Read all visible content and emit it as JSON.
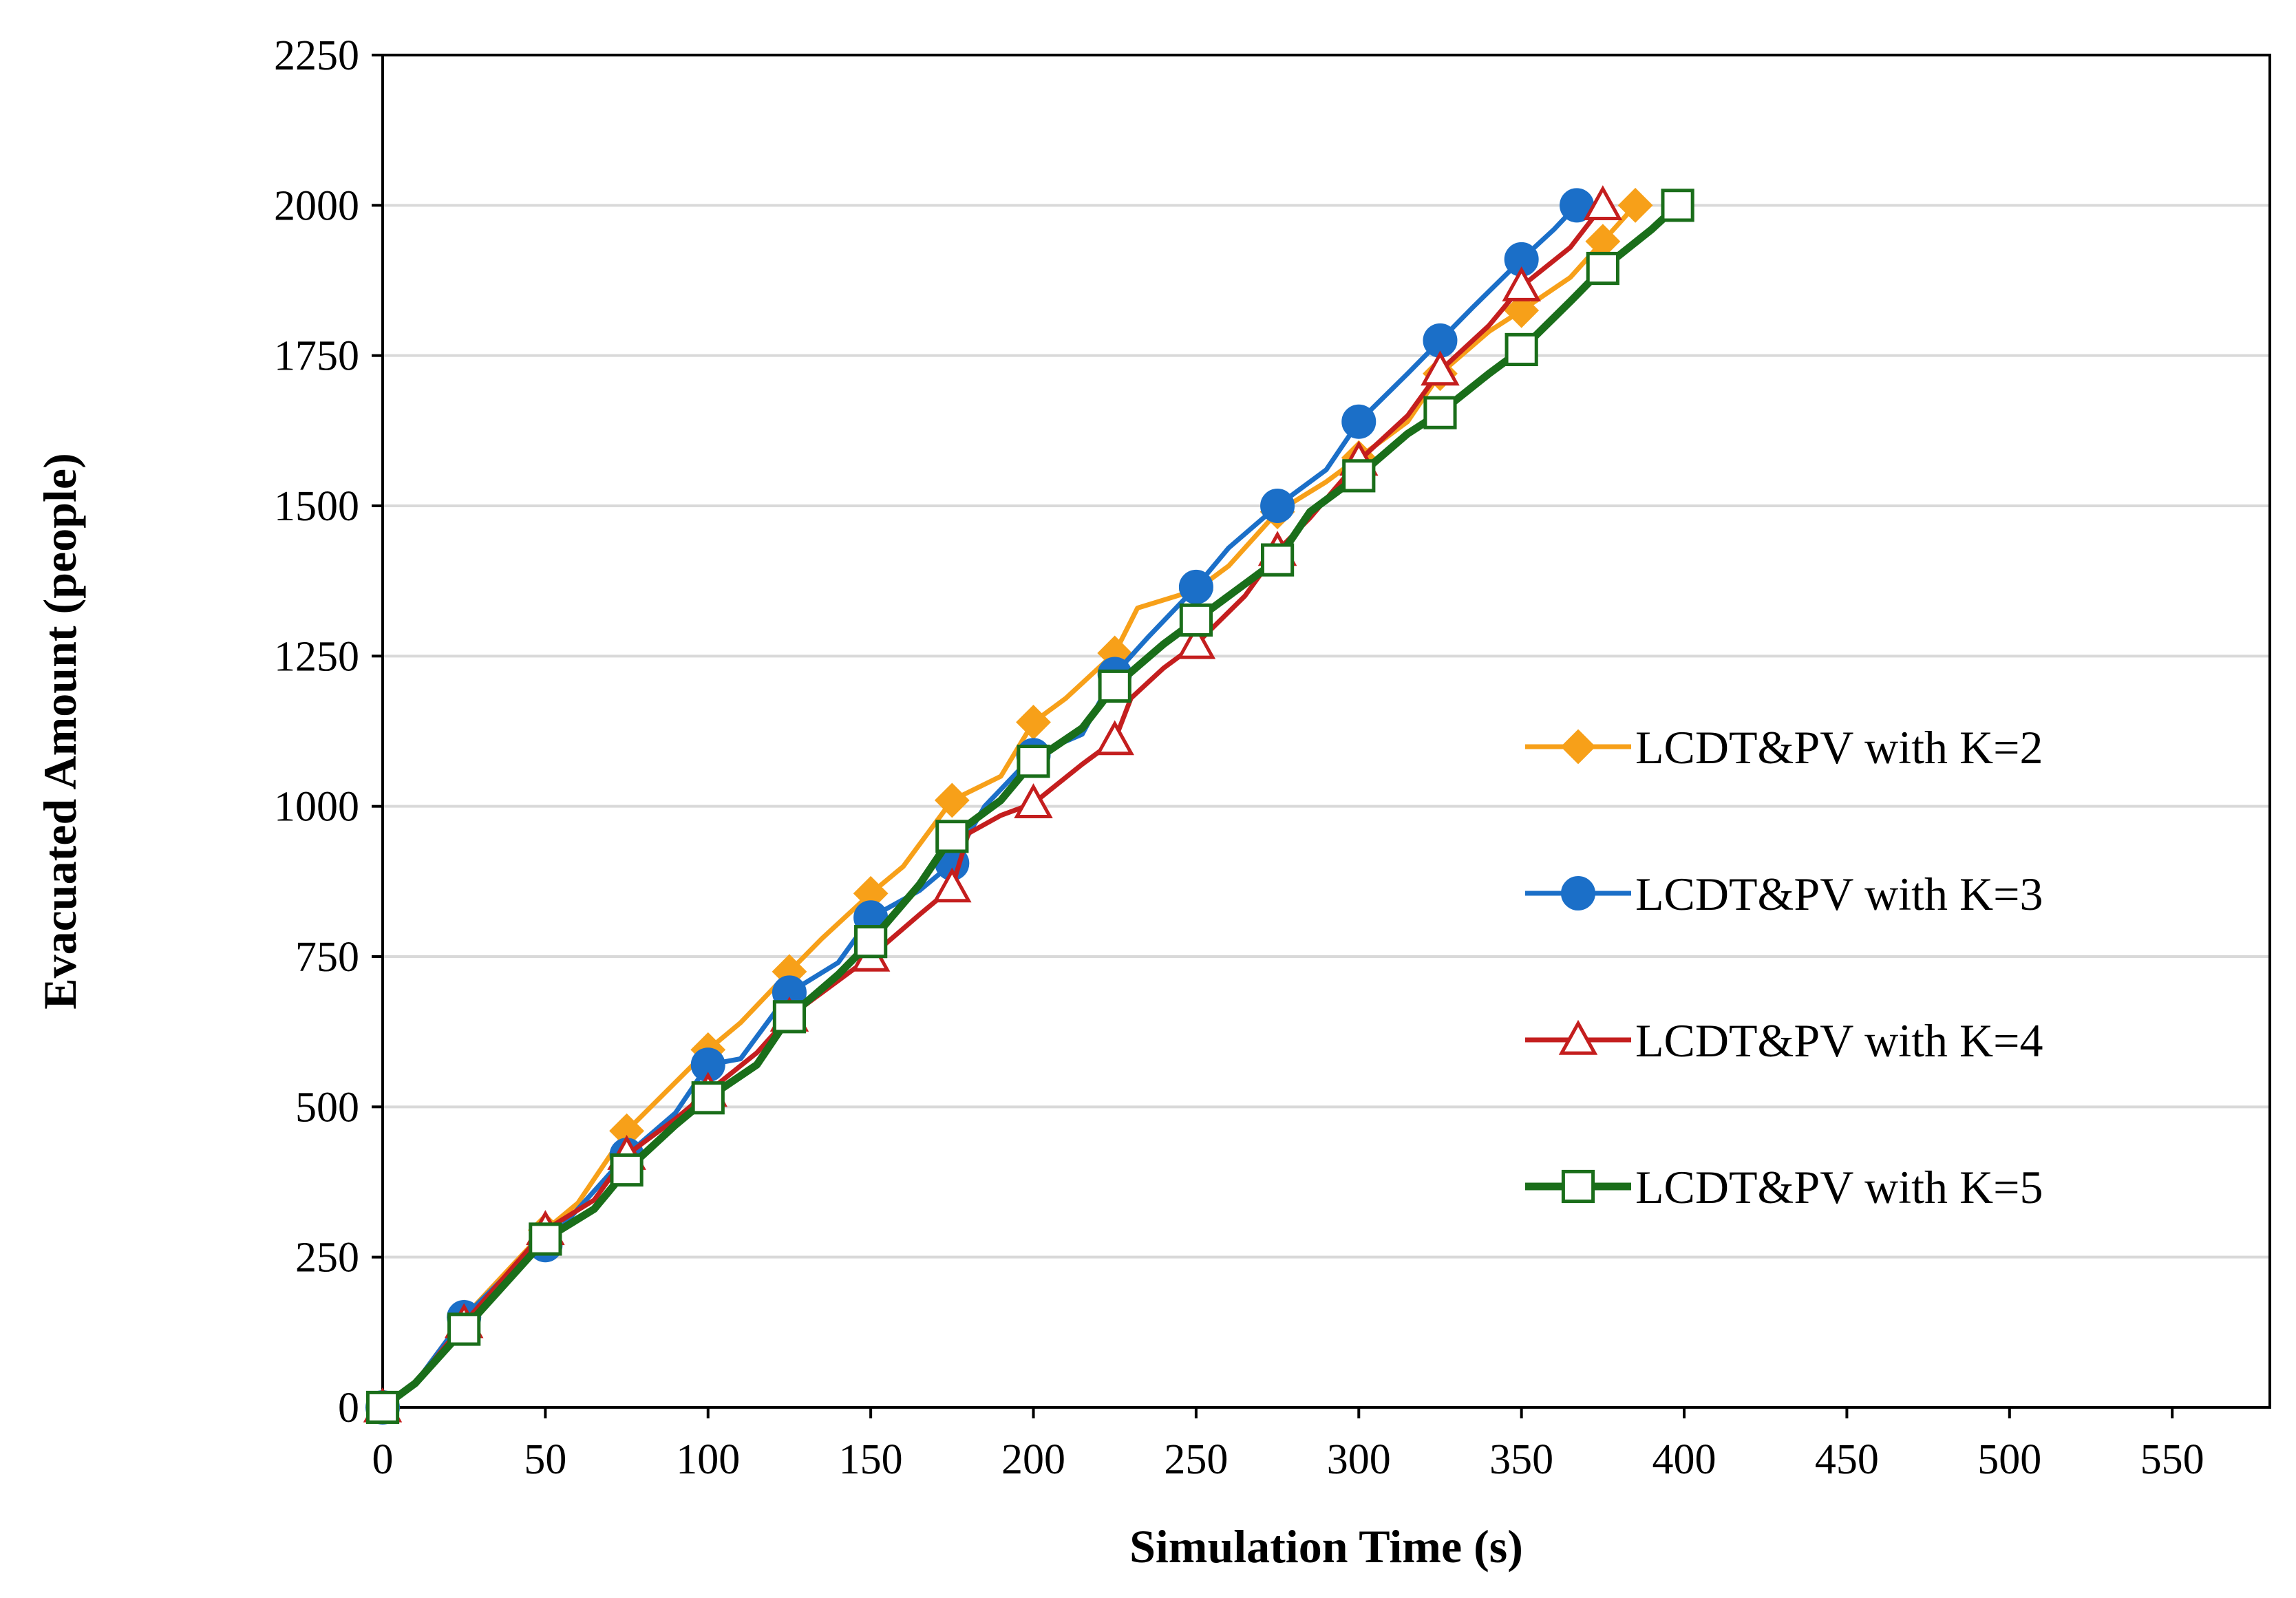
{
  "chart_data": {
    "type": "line",
    "title": "",
    "xlabel": "Simulation Time (s)",
    "ylabel": "Evacuated Amount (people)",
    "xlim": [
      0,
      580
    ],
    "ylim": [
      0,
      2250
    ],
    "xticks": [
      0,
      50,
      100,
      150,
      200,
      250,
      300,
      350,
      400,
      450,
      500,
      550
    ],
    "yticks": [
      0,
      250,
      500,
      750,
      1000,
      1250,
      1500,
      1750,
      2000,
      2250
    ],
    "grid": "horizontal",
    "legend_position": "right",
    "series": [
      {
        "name": "LCDT&PV with K=2",
        "color": "#F7A019",
        "marker": "diamond-filled",
        "points": [
          [
            0,
            0
          ],
          [
            10,
            40
          ],
          [
            25,
            150
          ],
          [
            50,
            295
          ],
          [
            60,
            340
          ],
          [
            75,
            460
          ],
          [
            100,
            595
          ],
          [
            110,
            640
          ],
          [
            125,
            725
          ],
          [
            135,
            780
          ],
          [
            150,
            855
          ],
          [
            160,
            900
          ],
          [
            175,
            1010
          ],
          [
            190,
            1050
          ],
          [
            200,
            1140
          ],
          [
            210,
            1180
          ],
          [
            225,
            1255
          ],
          [
            232,
            1330
          ],
          [
            250,
            1360
          ],
          [
            260,
            1400
          ],
          [
            275,
            1490
          ],
          [
            290,
            1540
          ],
          [
            300,
            1580
          ],
          [
            315,
            1640
          ],
          [
            325,
            1720
          ],
          [
            340,
            1790
          ],
          [
            350,
            1825
          ],
          [
            365,
            1880
          ],
          [
            375,
            1940
          ],
          [
            385,
            2000
          ]
        ]
      },
      {
        "name": "LCDT&PV with K=3",
        "color": "#1B6FC8",
        "marker": "circle-filled",
        "points": [
          [
            0,
            0
          ],
          [
            10,
            40
          ],
          [
            25,
            150
          ],
          [
            40,
            230
          ],
          [
            50,
            270
          ],
          [
            60,
            330
          ],
          [
            75,
            420
          ],
          [
            90,
            490
          ],
          [
            100,
            570
          ],
          [
            110,
            580
          ],
          [
            125,
            690
          ],
          [
            140,
            740
          ],
          [
            150,
            815
          ],
          [
            165,
            860
          ],
          [
            175,
            905
          ],
          [
            185,
            1000
          ],
          [
            200,
            1085
          ],
          [
            215,
            1120
          ],
          [
            225,
            1220
          ],
          [
            235,
            1280
          ],
          [
            250,
            1365
          ],
          [
            260,
            1430
          ],
          [
            275,
            1500
          ],
          [
            290,
            1560
          ],
          [
            300,
            1640
          ],
          [
            315,
            1720
          ],
          [
            325,
            1775
          ],
          [
            335,
            1830
          ],
          [
            350,
            1910
          ],
          [
            360,
            1960
          ],
          [
            367,
            2000
          ]
        ]
      },
      {
        "name": "LCDT&PV with K=4",
        "color": "#C41E1E",
        "marker": "triangle-open",
        "points": [
          [
            0,
            0
          ],
          [
            10,
            40
          ],
          [
            25,
            140
          ],
          [
            50,
            295
          ],
          [
            65,
            345
          ],
          [
            75,
            420
          ],
          [
            90,
            480
          ],
          [
            100,
            525
          ],
          [
            115,
            590
          ],
          [
            125,
            650
          ],
          [
            140,
            710
          ],
          [
            150,
            750
          ],
          [
            165,
            820
          ],
          [
            175,
            865
          ],
          [
            180,
            955
          ],
          [
            190,
            985
          ],
          [
            200,
            1005
          ],
          [
            215,
            1070
          ],
          [
            225,
            1110
          ],
          [
            230,
            1180
          ],
          [
            240,
            1230
          ],
          [
            250,
            1270
          ],
          [
            265,
            1350
          ],
          [
            275,
            1425
          ],
          [
            285,
            1480
          ],
          [
            300,
            1575
          ],
          [
            315,
            1650
          ],
          [
            325,
            1725
          ],
          [
            340,
            1800
          ],
          [
            350,
            1865
          ],
          [
            365,
            1930
          ],
          [
            375,
            2000
          ]
        ]
      },
      {
        "name": "LCDT&PV with K=5",
        "color": "#1A6E1A",
        "marker": "square-open",
        "points": [
          [
            0,
            0
          ],
          [
            10,
            40
          ],
          [
            25,
            130
          ],
          [
            40,
            220
          ],
          [
            50,
            280
          ],
          [
            65,
            330
          ],
          [
            75,
            395
          ],
          [
            90,
            470
          ],
          [
            100,
            515
          ],
          [
            115,
            570
          ],
          [
            125,
            650
          ],
          [
            140,
            720
          ],
          [
            150,
            775
          ],
          [
            165,
            870
          ],
          [
            175,
            950
          ],
          [
            190,
            1010
          ],
          [
            200,
            1075
          ],
          [
            215,
            1130
          ],
          [
            225,
            1200
          ],
          [
            240,
            1270
          ],
          [
            250,
            1310
          ],
          [
            265,
            1370
          ],
          [
            275,
            1410
          ],
          [
            285,
            1490
          ],
          [
            300,
            1550
          ],
          [
            315,
            1620
          ],
          [
            325,
            1655
          ],
          [
            340,
            1720
          ],
          [
            350,
            1760
          ],
          [
            365,
            1840
          ],
          [
            375,
            1895
          ],
          [
            390,
            1960
          ],
          [
            398,
            2000
          ]
        ]
      }
    ]
  }
}
